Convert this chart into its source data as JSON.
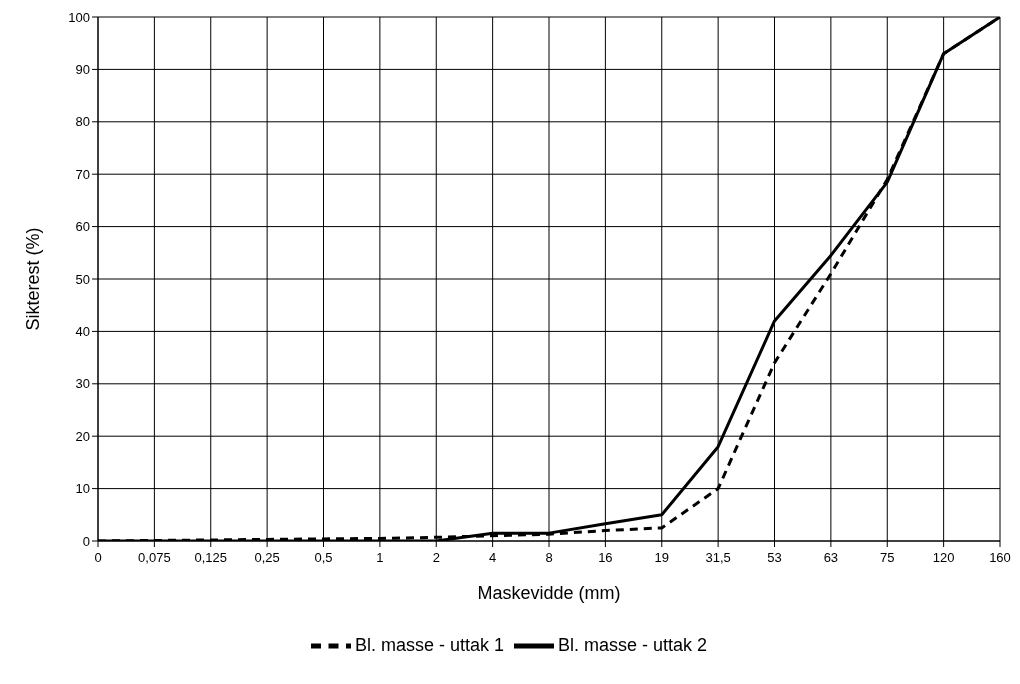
{
  "chart_data": {
    "type": "line",
    "xlabel": "Maskevidde (mm)",
    "ylabel": "Sikterest (%)",
    "categories": [
      "0",
      "0,075",
      "0,125",
      "0,25",
      "0,5",
      "1",
      "2",
      "4",
      "8",
      "16",
      "19",
      "31,5",
      "53",
      "63",
      "75",
      "120",
      "160"
    ],
    "series": [
      {
        "name": "Bl. masse - uttak 1",
        "color": "#000000",
        "line_style": "dashed",
        "values": [
          0,
          0.1,
          0.2,
          0.3,
          0.4,
          0.5,
          0.7,
          1,
          1.3,
          2,
          2.5,
          10,
          34,
          51,
          69,
          93,
          100
        ]
      },
      {
        "name": "Bl. masse - uttak 2",
        "color": "#000000",
        "line_style": "solid",
        "values": [
          0,
          0,
          0,
          0,
          0,
          0,
          0,
          1.5,
          1.5,
          3.3,
          5,
          18,
          42,
          54.5,
          68.5,
          93,
          100
        ]
      }
    ],
    "ylim": [
      0,
      100
    ],
    "yticks": [
      0,
      10,
      20,
      30,
      40,
      50,
      60,
      70,
      80,
      90,
      100
    ],
    "grid": true,
    "legend": "bottom",
    "marker": "none"
  }
}
